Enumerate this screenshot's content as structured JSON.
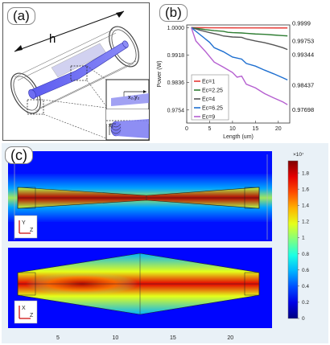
{
  "panels": {
    "a_label": "(a)",
    "b_label": "(b)",
    "c_label": "(c)",
    "a_h_label": "h",
    "a_x2_label": "x₂,y₂",
    "a_x1_label": "x₁"
  },
  "chart_data": [
    {
      "type": "line",
      "xlabel": "Length (um)",
      "ylabel": "Power (W)",
      "xlim": [
        0,
        22.5
      ],
      "ylim": [
        0.9715,
        1.0008
      ],
      "x_ticks": [
        0,
        5,
        10,
        15,
        20
      ],
      "y_ticks": [
        1.0,
        0.9918,
        0.9836,
        0.9754
      ],
      "y_tick_labels": [
        "1.0000",
        "0.9918",
        "0.9836",
        "0.9754"
      ],
      "legend_position": "bottom-left",
      "end_labels": [
        "0.9999",
        "0.99753",
        "0.99344",
        "0.98437",
        "0.97698"
      ],
      "series": [
        {
          "name": "Ec=1",
          "color": "#e53935",
          "x": [
            1,
            5,
            10,
            12,
            15,
            20,
            22
          ],
          "y": [
            1.0,
            0.99995,
            0.99993,
            0.99992,
            0.99991,
            0.9999,
            0.9999
          ]
        },
        {
          "name": "Ec=2.25",
          "color": "#2e7d32",
          "x": [
            1,
            4,
            6,
            8,
            9,
            10,
            12,
            13,
            15,
            17,
            19,
            21,
            22
          ],
          "y": [
            1.0,
            0.9994,
            0.9991,
            0.9989,
            0.9986,
            0.9985,
            0.9984,
            0.9983,
            0.9981,
            0.998,
            0.9978,
            0.9976,
            0.99753
          ]
        },
        {
          "name": "Ec=4",
          "color": "#555555",
          "x": [
            1,
            3,
            5,
            7,
            8,
            10,
            12,
            13,
            15,
            17,
            19,
            21,
            22
          ],
          "y": [
            1.0,
            0.9992,
            0.9985,
            0.9979,
            0.9975,
            0.9972,
            0.9971,
            0.9966,
            0.996,
            0.9955,
            0.9948,
            0.994,
            0.99344
          ]
        },
        {
          "name": "Ec=6.25",
          "color": "#1e6fd0",
          "x": [
            1,
            3,
            5,
            6,
            8,
            10,
            12,
            13,
            15,
            17,
            19,
            21,
            22
          ],
          "y": [
            1.0,
            0.9978,
            0.9956,
            0.994,
            0.9928,
            0.9912,
            0.9906,
            0.9893,
            0.9885,
            0.9873,
            0.9862,
            0.985,
            0.98437
          ]
        },
        {
          "name": "Ec=9",
          "color": "#b55fd0",
          "x": [
            1,
            2,
            4,
            6,
            8,
            10,
            11,
            12,
            13,
            15,
            17,
            19,
            21,
            22
          ],
          "y": [
            1.0,
            0.996,
            0.993,
            0.9897,
            0.9882,
            0.9866,
            0.9852,
            0.9855,
            0.9831,
            0.982,
            0.9803,
            0.979,
            0.9778,
            0.97698
          ]
        }
      ]
    },
    {
      "type": "heatmap",
      "x_ticks": [
        5,
        10,
        15,
        20
      ],
      "axes_labels_top": [
        "Y",
        "Z"
      ],
      "axes_labels_bottom": [
        "X",
        "Z"
      ],
      "colorbar_exponent": "×10⁷",
      "colorbar_ticks": [
        0,
        0.2,
        0.4,
        0.6,
        0.8,
        1.0,
        1.2,
        1.4,
        1.6,
        1.8
      ],
      "colorbar_tick_labels": [
        "0",
        "0.2",
        "0.4",
        "0.6",
        "0.8",
        "1",
        "1.2",
        "1.4",
        "1.6",
        "1.8"
      ],
      "colorbar_range": [
        0,
        1.95
      ]
    }
  ]
}
